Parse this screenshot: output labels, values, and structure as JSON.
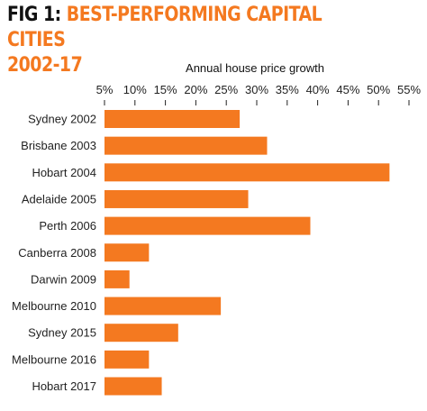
{
  "header": {
    "fig_label": "FIG 1:",
    "title": "BEST-PERFORMING CAPITAL CITIES",
    "subtitle": "2002-17"
  },
  "colors": {
    "accent": "#f47920",
    "bar": "#f47920",
    "text": "#222222"
  },
  "chart_data": {
    "type": "bar",
    "orientation": "horizontal",
    "title": "BEST-PERFORMING CAPITAL CITIES 2002-17",
    "xlabel": "Annual house price growth",
    "ylabel": "",
    "xlim": [
      5,
      55
    ],
    "x_ticks": [
      "5%",
      "10%",
      "15%",
      "20%",
      "25%",
      "30%",
      "35%",
      "40%",
      "45%",
      "50%",
      "55%"
    ],
    "x_tick_values": [
      5,
      10,
      15,
      20,
      25,
      30,
      35,
      40,
      45,
      50,
      55
    ],
    "axis_position": "top",
    "grid": false,
    "categories": [
      "Sydney 2002",
      "Brisbane 2003",
      "Hobart 2004",
      "Adelaide 2005",
      "Perth 2006",
      "Canberra 2008",
      "Darwin 2009",
      "Melbourne 2010",
      "Sydney 2015",
      "Melbourne 2016",
      "Hobart 2017"
    ],
    "values": [
      27.2,
      31.7,
      51.8,
      28.6,
      38.8,
      12.3,
      9.1,
      24.1,
      17.1,
      12.3,
      14.4
    ]
  }
}
